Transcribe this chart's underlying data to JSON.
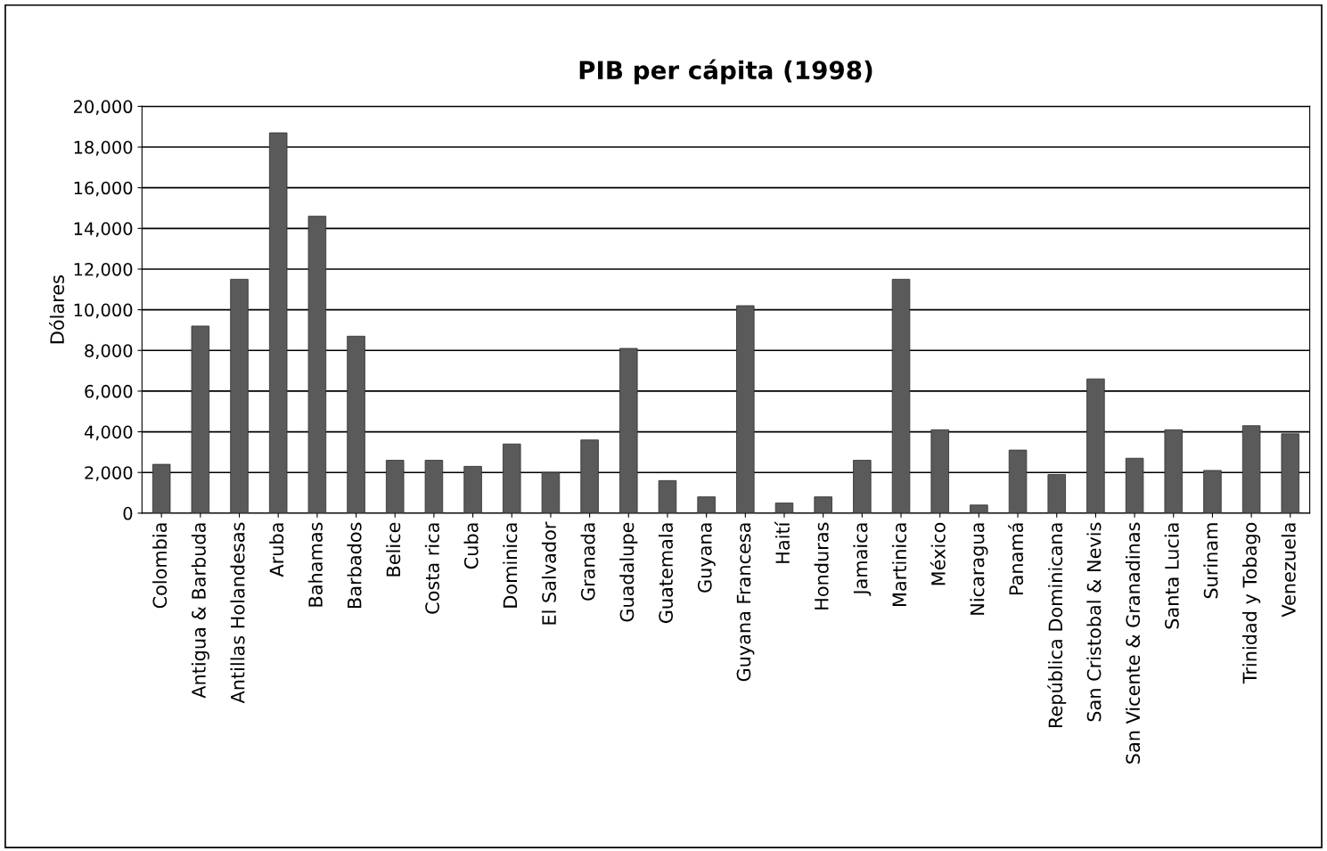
{
  "chart_data": {
    "type": "bar",
    "title": "PIB per cápita (1998)",
    "ylabel": "Dólares",
    "categories": [
      "Colombia",
      "Antigua & Barbuda",
      "Antillas Holandesas",
      "Aruba",
      "Bahamas",
      "Barbados",
      "Belice",
      "Costa rica",
      "Cuba",
      "Dominica",
      "El Salvador",
      "Granada",
      "Guadalupe",
      "Guatemala",
      "Guyana",
      "Guyana Francesa",
      "Haití",
      "Honduras",
      "Jamaica",
      "Martinica",
      "México",
      "Nicaragua",
      "Panamá",
      "República Dominicana",
      "San Cristobal & Nevis",
      "San Vicente & Granadinas",
      "Santa Lucia",
      "Surinam",
      "Trinidad y Tobago",
      "Venezuela"
    ],
    "values": [
      2400,
      9200,
      11500,
      18700,
      14600,
      8700,
      2600,
      2600,
      2300,
      3400,
      2000,
      3600,
      8100,
      1600,
      800,
      10200,
      500,
      800,
      2600,
      11500,
      4100,
      400,
      3100,
      1900,
      6600,
      2700,
      4100,
      2100,
      4300,
      3900
    ],
    "color": "#5a5a5a",
    "ylim": [
      0,
      20000
    ],
    "yticks": [
      {
        "value": 0,
        "label": "0"
      },
      {
        "value": 2000,
        "label": "2,000"
      },
      {
        "value": 4000,
        "label": "4,000"
      },
      {
        "value": 6000,
        "label": "6,000"
      },
      {
        "value": 8000,
        "label": "8,000"
      },
      {
        "value": 10000,
        "label": "10,000"
      },
      {
        "value": 12000,
        "label": "12,000"
      },
      {
        "value": 14000,
        "label": "14,000"
      },
      {
        "value": 16000,
        "label": "16,000"
      },
      {
        "value": 18000,
        "label": "18,000"
      },
      {
        "value": 20000,
        "label": "20,000"
      }
    ],
    "grid": "y"
  }
}
